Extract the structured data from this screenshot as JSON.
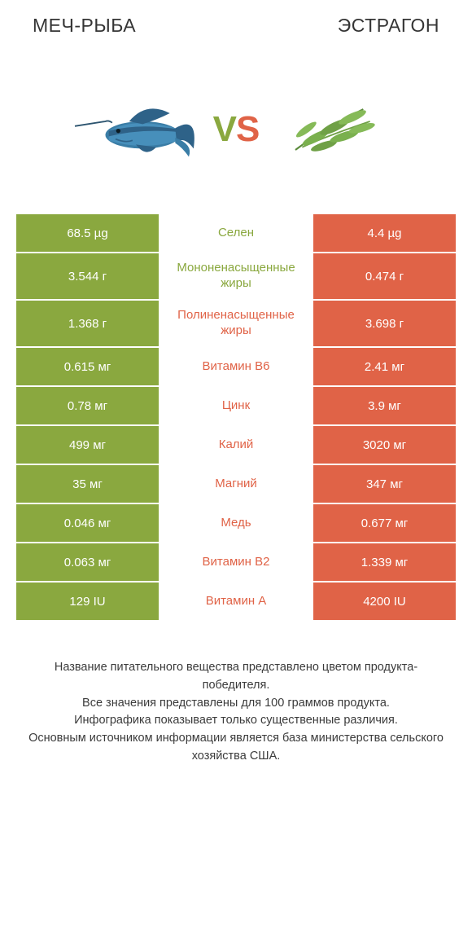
{
  "header": {
    "left_title": "МЕЧ-РЫБА",
    "right_title": "ЭСТРАГОН"
  },
  "vs": {
    "v": "V",
    "s": "S"
  },
  "left_food_name": "swordfish",
  "right_food_name": "tarragon",
  "colors": {
    "green": "#8aa83f",
    "orange": "#e06347",
    "text": "#353535",
    "bg": "#ffffff"
  },
  "rows": [
    {
      "left": "68.5 µg",
      "mid": "Селен",
      "right": "4.4 µg",
      "winner": "left",
      "tall": false
    },
    {
      "left": "3.544 г",
      "mid": "Мононенасыщенные жиры",
      "right": "0.474 г",
      "winner": "left",
      "tall": true
    },
    {
      "left": "1.368 г",
      "mid": "Полиненасыщенные жиры",
      "right": "3.698 г",
      "winner": "right",
      "tall": true
    },
    {
      "left": "0.615 мг",
      "mid": "Витамин B6",
      "right": "2.41 мг",
      "winner": "right",
      "tall": false
    },
    {
      "left": "0.78 мг",
      "mid": "Цинк",
      "right": "3.9 мг",
      "winner": "right",
      "tall": false
    },
    {
      "left": "499 мг",
      "mid": "Калий",
      "right": "3020 мг",
      "winner": "right",
      "tall": false
    },
    {
      "left": "35 мг",
      "mid": "Магний",
      "right": "347 мг",
      "winner": "right",
      "tall": false
    },
    {
      "left": "0.046 мг",
      "mid": "Медь",
      "right": "0.677 мг",
      "winner": "right",
      "tall": false
    },
    {
      "left": "0.063 мг",
      "mid": "Витамин B2",
      "right": "1.339 мг",
      "winner": "right",
      "tall": false
    },
    {
      "left": "129 IU",
      "mid": "Витамин A",
      "right": "4200 IU",
      "winner": "right",
      "tall": false
    }
  ],
  "footnote": "Название питательного вещества представлено цветом продукта-победителя.\nВсе значения представлены для 100 граммов продукта.\nИнфографика показывает только существенные различия.\nОсновным источником информации является база министерства сельского хозяйства США."
}
